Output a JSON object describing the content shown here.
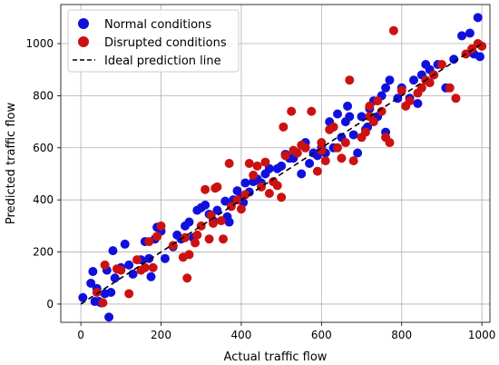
{
  "chart_data": {
    "type": "scatter",
    "xlabel": "Actual traffic flow",
    "ylabel": "Predicted traffic flow",
    "xlim": [
      -50,
      1020
    ],
    "ylim": [
      -70,
      1150
    ],
    "xticks": [
      0,
      200,
      400,
      600,
      800,
      1000
    ],
    "yticks": [
      0,
      200,
      400,
      600,
      800,
      1000
    ],
    "grid": true,
    "legend_position": "top-left",
    "series": [
      {
        "name": "Normal conditions",
        "color": "#1010dd",
        "points": [
          [
            5,
            25
          ],
          [
            25,
            80
          ],
          [
            30,
            125
          ],
          [
            35,
            10
          ],
          [
            40,
            60
          ],
          [
            45,
            10
          ],
          [
            50,
            5
          ],
          [
            60,
            40
          ],
          [
            65,
            130
          ],
          [
            70,
            -50
          ],
          [
            75,
            45
          ],
          [
            80,
            205
          ],
          [
            85,
            100
          ],
          [
            100,
            140
          ],
          [
            110,
            230
          ],
          [
            120,
            150
          ],
          [
            130,
            115
          ],
          [
            150,
            170
          ],
          [
            160,
            240
          ],
          [
            170,
            175
          ],
          [
            175,
            105
          ],
          [
            185,
            250
          ],
          [
            190,
            295
          ],
          [
            200,
            280
          ],
          [
            210,
            175
          ],
          [
            230,
            220
          ],
          [
            240,
            265
          ],
          [
            250,
            250
          ],
          [
            260,
            300
          ],
          [
            270,
            315
          ],
          [
            280,
            255
          ],
          [
            290,
            360
          ],
          [
            300,
            370
          ],
          [
            310,
            380
          ],
          [
            320,
            345
          ],
          [
            330,
            320
          ],
          [
            340,
            360
          ],
          [
            360,
            395
          ],
          [
            365,
            335
          ],
          [
            370,
            315
          ],
          [
            380,
            400
          ],
          [
            390,
            435
          ],
          [
            400,
            410
          ],
          [
            405,
            390
          ],
          [
            410,
            465
          ],
          [
            420,
            430
          ],
          [
            430,
            470
          ],
          [
            440,
            480
          ],
          [
            450,
            465
          ],
          [
            460,
            500
          ],
          [
            470,
            520
          ],
          [
            480,
            470
          ],
          [
            490,
            520
          ],
          [
            500,
            530
          ],
          [
            510,
            575
          ],
          [
            520,
            560
          ],
          [
            530,
            560
          ],
          [
            550,
            500
          ],
          [
            560,
            620
          ],
          [
            570,
            540
          ],
          [
            580,
            580
          ],
          [
            590,
            570
          ],
          [
            600,
            600
          ],
          [
            610,
            580
          ],
          [
            620,
            700
          ],
          [
            630,
            600
          ],
          [
            640,
            730
          ],
          [
            650,
            640
          ],
          [
            660,
            700
          ],
          [
            665,
            760
          ],
          [
            670,
            720
          ],
          [
            680,
            650
          ],
          [
            690,
            580
          ],
          [
            700,
            720
          ],
          [
            710,
            670
          ],
          [
            715,
            680
          ],
          [
            720,
            750
          ],
          [
            730,
            780
          ],
          [
            740,
            720
          ],
          [
            750,
            800
          ],
          [
            760,
            830
          ],
          [
            770,
            860
          ],
          [
            790,
            790
          ],
          [
            800,
            830
          ],
          [
            820,
            790
          ],
          [
            830,
            860
          ],
          [
            840,
            770
          ],
          [
            850,
            880
          ],
          [
            860,
            920
          ],
          [
            870,
            900
          ],
          [
            880,
            880
          ],
          [
            890,
            920
          ],
          [
            910,
            830
          ],
          [
            930,
            940
          ],
          [
            950,
            1030
          ],
          [
            970,
            1040
          ],
          [
            980,
            960
          ],
          [
            990,
            1100
          ],
          [
            995,
            950
          ],
          [
            760,
            660
          ]
        ]
      },
      {
        "name": "Disrupted conditions",
        "color": "#cc1111",
        "points": [
          [
            40,
            45
          ],
          [
            55,
            5
          ],
          [
            60,
            150
          ],
          [
            90,
            135
          ],
          [
            100,
            130
          ],
          [
            120,
            40
          ],
          [
            140,
            170
          ],
          [
            150,
            130
          ],
          [
            160,
            140
          ],
          [
            170,
            240
          ],
          [
            180,
            140
          ],
          [
            190,
            260
          ],
          [
            200,
            300
          ],
          [
            230,
            225
          ],
          [
            255,
            180
          ],
          [
            260,
            255
          ],
          [
            265,
            100
          ],
          [
            270,
            190
          ],
          [
            285,
            235
          ],
          [
            290,
            265
          ],
          [
            300,
            300
          ],
          [
            310,
            440
          ],
          [
            320,
            250
          ],
          [
            325,
            340
          ],
          [
            330,
            310
          ],
          [
            335,
            445
          ],
          [
            340,
            450
          ],
          [
            350,
            320
          ],
          [
            355,
            250
          ],
          [
            370,
            540
          ],
          [
            375,
            375
          ],
          [
            390,
            400
          ],
          [
            400,
            365
          ],
          [
            410,
            420
          ],
          [
            420,
            540
          ],
          [
            430,
            495
          ],
          [
            440,
            530
          ],
          [
            450,
            450
          ],
          [
            460,
            545
          ],
          [
            470,
            425
          ],
          [
            480,
            470
          ],
          [
            490,
            455
          ],
          [
            500,
            410
          ],
          [
            505,
            680
          ],
          [
            510,
            570
          ],
          [
            525,
            740
          ],
          [
            530,
            590
          ],
          [
            540,
            580
          ],
          [
            550,
            610
          ],
          [
            560,
            600
          ],
          [
            575,
            740
          ],
          [
            590,
            510
          ],
          [
            600,
            620
          ],
          [
            610,
            550
          ],
          [
            620,
            670
          ],
          [
            630,
            680
          ],
          [
            640,
            600
          ],
          [
            650,
            560
          ],
          [
            660,
            620
          ],
          [
            670,
            860
          ],
          [
            680,
            550
          ],
          [
            700,
            640
          ],
          [
            710,
            660
          ],
          [
            720,
            720
          ],
          [
            730,
            700
          ],
          [
            740,
            780
          ],
          [
            750,
            740
          ],
          [
            760,
            640
          ],
          [
            770,
            620
          ],
          [
            780,
            1050
          ],
          [
            800,
            820
          ],
          [
            810,
            760
          ],
          [
            820,
            780
          ],
          [
            840,
            810
          ],
          [
            850,
            830
          ],
          [
            860,
            860
          ],
          [
            870,
            850
          ],
          [
            880,
            880
          ],
          [
            900,
            920
          ],
          [
            920,
            830
          ],
          [
            935,
            790
          ],
          [
            960,
            960
          ],
          [
            975,
            980
          ],
          [
            990,
            1000
          ],
          [
            1000,
            990
          ],
          [
            720,
            760
          ],
          [
            600,
            590
          ]
        ]
      },
      {
        "name": "Ideal prediction line",
        "color": "#000000",
        "style": "dashed",
        "x": [
          0,
          1000
        ],
        "y": [
          0,
          1000
        ]
      }
    ]
  }
}
